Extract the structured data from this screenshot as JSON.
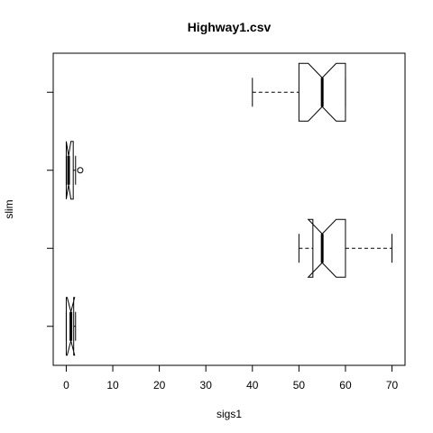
{
  "chart_data": {
    "type": "boxplot",
    "title": "Highway1.csv",
    "xlabel": "sigs1",
    "ylabel": "slim",
    "orientation": "horizontal",
    "notched": true,
    "xlim": [
      -2.8,
      72.8
    ],
    "x_ticks": [
      0,
      10,
      20,
      30,
      40,
      50,
      60,
      70
    ],
    "boxes": [
      {
        "whisker_low": 0,
        "q1": 0,
        "median": 1,
        "q3": 1.6,
        "whisker_high": 2,
        "notch_low": 0.2,
        "notch_high": 1.8,
        "outliers": []
      },
      {
        "whisker_low": 50,
        "q1": 53,
        "median": 55,
        "q3": 60,
        "whisker_high": 70,
        "notch_low": 52,
        "notch_high": 58,
        "outliers": []
      },
      {
        "whisker_low": 0,
        "q1": 0,
        "median": 0.5,
        "q3": 1.5,
        "whisker_high": 2,
        "notch_low": 0,
        "notch_high": 1,
        "outliers": [
          3
        ]
      },
      {
        "whisker_low": 40,
        "q1": 50,
        "median": 55,
        "q3": 60,
        "whisker_high": 60,
        "notch_low": 52,
        "notch_high": 58,
        "outliers": []
      }
    ]
  }
}
